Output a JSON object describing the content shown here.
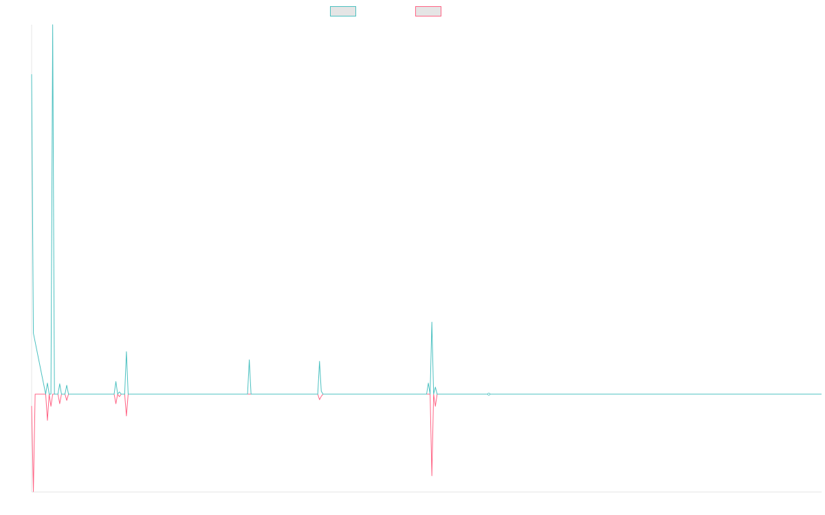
{
  "chart_data": {
    "type": "line",
    "title": "",
    "xlabel": "",
    "ylabel": "",
    "ylim": [
      -26.4,
      100
    ],
    "grid": false,
    "legend": {
      "placement": "top",
      "entries": [
        "",
        ""
      ]
    },
    "point_count": 451,
    "default_value": 0,
    "series": [
      {
        "color": "#4bc0c0",
        "points": [
          [
            0,
            86.6
          ],
          [
            1,
            16.5
          ],
          [
            8,
            0
          ],
          [
            9,
            3.0
          ],
          [
            10,
            0
          ],
          [
            11,
            0
          ],
          [
            12,
            100
          ],
          [
            13,
            0
          ],
          [
            15,
            0
          ],
          [
            16,
            2.8
          ],
          [
            17,
            0
          ],
          [
            19,
            0
          ],
          [
            20,
            2.4
          ],
          [
            21,
            0
          ],
          [
            47,
            0
          ],
          [
            48,
            3.4
          ],
          [
            49,
            0
          ],
          [
            50,
            0.6
          ],
          [
            51,
            0
          ],
          [
            53,
            0
          ],
          [
            54,
            11.5
          ],
          [
            55,
            0
          ],
          [
            123,
            0
          ],
          [
            124,
            9.3
          ],
          [
            125,
            0
          ],
          [
            163,
            0
          ],
          [
            164,
            8.9
          ],
          [
            165,
            0.8
          ],
          [
            166,
            0
          ],
          [
            225,
            0
          ],
          [
            226,
            3.0
          ],
          [
            227,
            0
          ],
          [
            228,
            19.5
          ],
          [
            229,
            0
          ],
          [
            230,
            1.9
          ],
          [
            231,
            0
          ]
        ]
      },
      {
        "color": "#ff6384",
        "points": [
          [
            0,
            -3.2
          ],
          [
            1,
            -26.4
          ],
          [
            2,
            0
          ],
          [
            8,
            0
          ],
          [
            9,
            -7.1
          ],
          [
            10,
            0
          ],
          [
            11,
            -3.3
          ],
          [
            12,
            0
          ],
          [
            15,
            0
          ],
          [
            16,
            -2.6
          ],
          [
            17,
            0
          ],
          [
            19,
            0
          ],
          [
            20,
            -1.7
          ],
          [
            21,
            0
          ],
          [
            47,
            0
          ],
          [
            48,
            -2.6
          ],
          [
            49,
            0
          ],
          [
            50,
            -0.7
          ],
          [
            51,
            0
          ],
          [
            53,
            0
          ],
          [
            54,
            -5.9
          ],
          [
            55,
            0
          ],
          [
            163,
            0
          ],
          [
            164,
            -1.5
          ],
          [
            165,
            -0.6
          ],
          [
            166,
            0
          ],
          [
            227,
            0
          ],
          [
            228,
            -22.1
          ],
          [
            229,
            0
          ],
          [
            230,
            -3.3
          ],
          [
            231,
            0
          ]
        ]
      }
    ]
  }
}
